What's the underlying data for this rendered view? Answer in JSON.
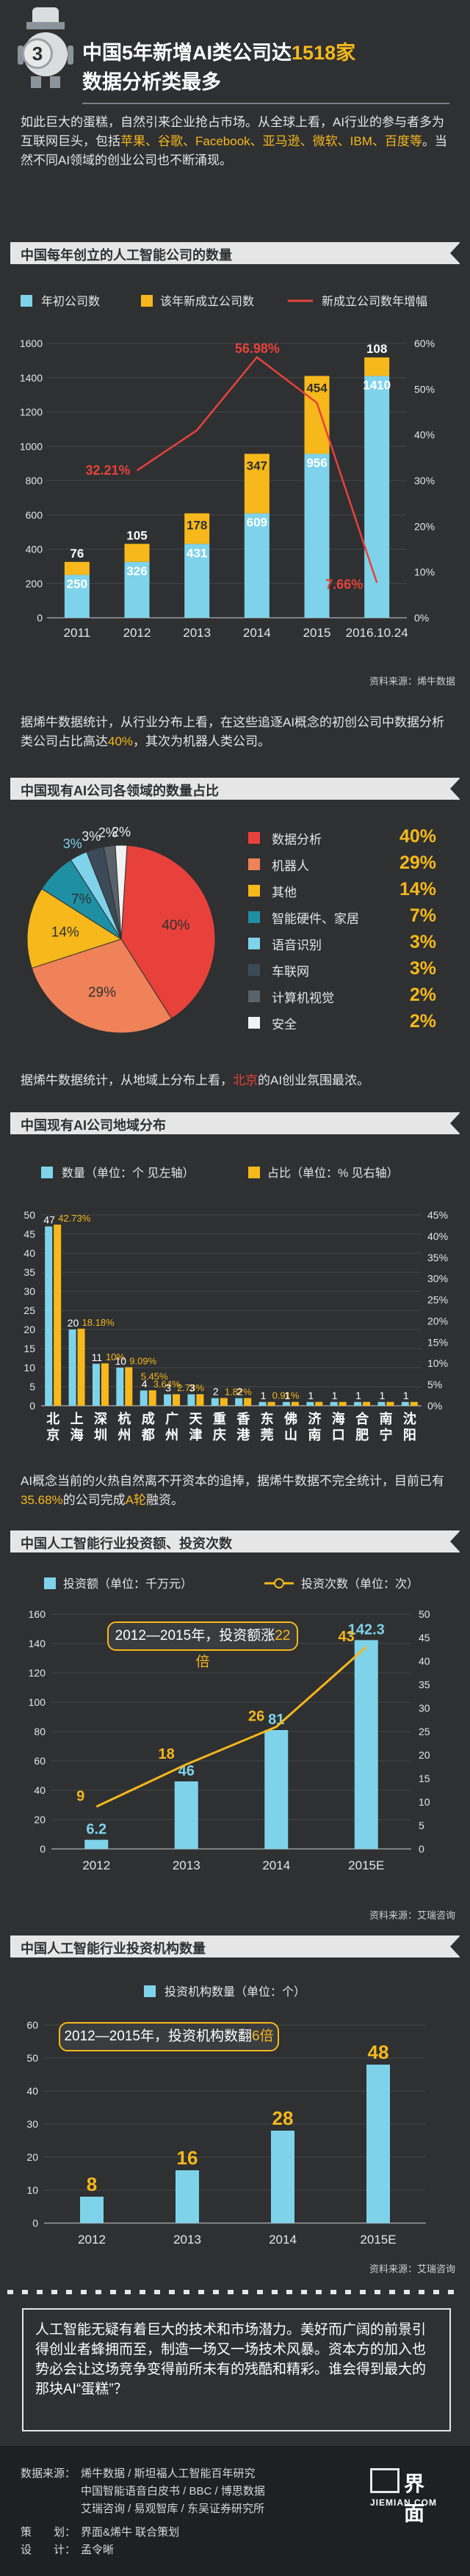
{
  "header": {
    "number": "3",
    "title_line1_a": "中国5年新增AI类公司达",
    "title_line1_b": "1518家",
    "title_line2": "数据分析类最多"
  },
  "intro": {
    "p1_a": "如此巨大的蛋糕，自然引来企业抢占市场。从全球上看，AI行业的参与者多为互联网巨头，包括",
    "p1_hl": "苹果、谷歌、Facebook、亚马逊、微软、IBM、百度等",
    "p1_b": "。当然不同AI领域的创业公司也不断涌现。"
  },
  "sections": {
    "s1": "中国每年创立的人工智能公司的数量",
    "s2": "中国现有AI公司各领域的数量占比",
    "s3": "中国现有AI公司地域分布",
    "s4": "中国人工智能行业投资额、投资次数",
    "s5": "中国人工智能行业投资机构数量"
  },
  "text_blocks": {
    "t1_a": "据烯牛数据统计，从行业分布上看，在这些追逐AI概念的初创公司中数据分析类公司占比高达",
    "t1_hl": "40%",
    "t1_b": "，其次为机器人类公司。",
    "t2_a": "据烯牛数据统计，从地域上分布上看，",
    "t2_hl": "北京",
    "t2_b": "的AI创业氛围最浓。",
    "t3_a": "AI概念当前的火热自然离不开资本的追捧，据烯牛数据不完全统计，目前已有",
    "t3_hl": "35.68%",
    "t3_b": "的公司完成",
    "t3_hl2": "A轮",
    "t3_c": "融资。"
  },
  "sources": {
    "s1": "资料来源：烯牛数据",
    "s4": "资料来源：艾瑞咨询",
    "s5": "资料来源：艾瑞咨询"
  },
  "callouts": {
    "c4_a": "2012—2015年，投资额涨",
    "c4_hl": "22倍",
    "c5_a": "2012—2015年，投资机构数翻",
    "c5_hl": "6倍"
  },
  "conclusion": "人工智能无疑有着巨大的技术和市场潜力。美好而广阔的前景引得创业者蜂拥而至，制造一场又一场技术风暴。资本方的加入也势必会让这场竞争变得前所未有的残酷和精彩。谁会得到最大的那块AI“蛋糕”？",
  "footer": {
    "source_label": "数据来源：",
    "source_lines": [
      "烯牛数据 / 斯坦福人工智能百年研究",
      "中国智能语音白皮书 / BBC / 博思数据",
      "艾瑞咨询 / 易观智库 / 东吴证券研究所"
    ],
    "plan_label": "策　　划：",
    "plan": "界面&烯牛 联合策划",
    "design_label": "设　　计：",
    "design": "孟令晰",
    "logo_text": "界面",
    "logo_sub": "JIEMIAN.COM"
  },
  "colors": {
    "cyan": "#7ed3ea",
    "yellow": "#f6b81b",
    "red": "#e8413b",
    "bg": "#2e3032"
  },
  "chart_data": [
    {
      "type": "bar",
      "title": "中国每年创立的人工智能公司的数量",
      "categories": [
        "2011",
        "2012",
        "2013",
        "2014",
        "2015",
        "2016.10.24"
      ],
      "series": [
        {
          "name": "年初公司数",
          "values": [
            250,
            326,
            431,
            609,
            956,
            1410
          ]
        },
        {
          "name": "该年新成立公司数",
          "values": [
            76,
            105,
            178,
            347,
            454,
            108
          ]
        },
        {
          "name": "新成立公司数年增幅",
          "values": [
            null,
            32.21,
            41.0,
            56.98,
            47.0,
            7.66
          ]
        }
      ],
      "data_labels_line": [
        "32.21%",
        "56.98%",
        "7.66%"
      ],
      "ylim": [
        0,
        1600
      ],
      "y2lim": [
        0,
        60
      ],
      "yticks": [
        "0",
        "200",
        "400",
        "600",
        "800",
        "1000",
        "1200",
        "1400",
        "1600"
      ],
      "y2ticks": [
        "0%",
        "10%",
        "20%",
        "30%",
        "40%",
        "50%",
        "60%"
      ],
      "legend": "top"
    },
    {
      "type": "pie",
      "title": "中国现有AI公司各领域的数量占比",
      "labels": [
        "数据分析",
        "机器人",
        "其他",
        "智能硬件、家居",
        "语音识别",
        "车联网",
        "计算机视觉",
        "安全"
      ],
      "values": [
        40,
        29,
        14,
        7,
        3,
        3,
        2,
        2
      ],
      "value_labels": [
        "40%",
        "29%",
        "14%",
        "7%",
        "3%",
        "3%",
        "2%",
        "2%"
      ],
      "colors": [
        "#e8413b",
        "#ef8258",
        "#f6b81b",
        "#1f8fa3",
        "#7ed3ea",
        "#3c4a57",
        "#5a6269",
        "#f2f2f2"
      ],
      "legend": "right"
    },
    {
      "type": "bar",
      "title": "中国现有AI公司地域分布",
      "categories": [
        "北京",
        "上海",
        "深圳",
        "杭州",
        "成都",
        "广州",
        "天津",
        "重庆",
        "香港",
        "东莞",
        "佛山",
        "济南",
        "海口",
        "合肥",
        "南宁",
        "沈阳"
      ],
      "series": [
        {
          "name": "数量（单位：个 见左轴）",
          "values": [
            47,
            20,
            11,
            10,
            4,
            3,
            3,
            2,
            2,
            1,
            1,
            1,
            1,
            1,
            1,
            1
          ]
        },
        {
          "name": "占比（单位：% 见右轴）",
          "values": [
            42.73,
            18.18,
            10.0,
            9.09,
            3.64,
            2.73,
            2.73,
            1.82,
            1.82,
            0.91,
            0.91,
            0.91,
            0.91,
            0.91,
            0.91,
            0.91
          ]
        }
      ],
      "count_labels": [
        "47",
        "20",
        "11",
        "10",
        "4",
        "3",
        "3",
        "2",
        "2",
        "1",
        "1",
        "1",
        "1",
        "1",
        "1",
        "1"
      ],
      "pct_labels": [
        "42.73%",
        "18.18%",
        "10%",
        "9.09%",
        "3.64%",
        "2.73%",
        "",
        "1.82%",
        "",
        "0.91%",
        "",
        "",
        "",
        "",
        "",
        ""
      ],
      "pct_labels_extra": [
        "5.45%"
      ],
      "ylim": [
        0,
        50
      ],
      "y2lim": [
        0,
        45
      ],
      "yticks": [
        "0",
        "5",
        "10",
        "15",
        "20",
        "25",
        "30",
        "35",
        "40",
        "45",
        "50"
      ],
      "y2ticks": [
        "0%",
        "5%",
        "10%",
        "15%",
        "20%",
        "25%",
        "30%",
        "35%",
        "40%",
        "45%"
      ],
      "legend": "top"
    },
    {
      "type": "bar",
      "title": "中国人工智能行业投资额、投资次数",
      "categories": [
        "2012",
        "2013",
        "2014",
        "2015E"
      ],
      "series": [
        {
          "name": "投资额（单位：千万元）",
          "values": [
            6.2,
            46,
            81,
            142.3
          ]
        },
        {
          "name": "投资次数（单位：次）",
          "values": [
            9,
            18,
            26,
            43
          ]
        }
      ],
      "value_labels": [
        "6.2",
        "46",
        "81",
        "142.3"
      ],
      "count_labels": [
        "9",
        "18",
        "26",
        "43"
      ],
      "ylim": [
        0,
        160
      ],
      "y2lim": [
        0,
        50
      ],
      "yticks": [
        "0",
        "20",
        "40",
        "60",
        "80",
        "100",
        "120",
        "140",
        "160"
      ],
      "y2ticks": [
        "0",
        "5",
        "10",
        "15",
        "20",
        "25",
        "30",
        "35",
        "40",
        "45",
        "50"
      ],
      "legend": "top"
    },
    {
      "type": "bar",
      "title": "中国人工智能行业投资机构数量",
      "categories": [
        "2012",
        "2013",
        "2014",
        "2015E"
      ],
      "series": [
        {
          "name": "投资机构数量（单位：个）",
          "values": [
            8,
            16,
            28,
            48
          ]
        }
      ],
      "value_labels": [
        "8",
        "16",
        "28",
        "48"
      ],
      "ylim": [
        0,
        60
      ],
      "yticks": [
        "0",
        "10",
        "20",
        "30",
        "40",
        "50",
        "60"
      ],
      "legend": "top"
    }
  ]
}
